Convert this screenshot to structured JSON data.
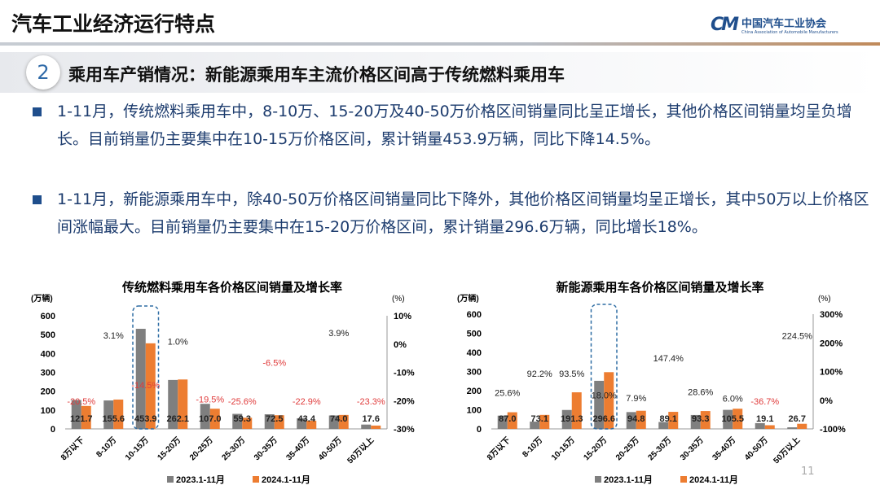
{
  "header": {
    "title": "汽车工业经济运行特点",
    "logo_cn": "中国汽车工业协会",
    "logo_en": "China Association of Automobile Manufacturers"
  },
  "section": {
    "number": "2",
    "title": "乘用车产销情况：新能源乘用车主流价格区间高于传统燃料乘用车"
  },
  "bullets": [
    "1-11月，传统燃料乘用车中，8-10万、15-20万及40-50万价格区间销量同比呈正增长，其他价格区间销量均呈负增长。目前销量仍主要集中在10-15万价格区间，累计销量453.9万辆，同比下降14.5%。",
    "1-11月，新能源乘用车中，除40-50万价格区间销量同比下降外，其他价格区间销量均呈正增长，其中50万以上价格区间涨幅最大。目前销量仍主要集中在15-20万价格区间，累计销量296.6万辆，同比增长18%。"
  ],
  "page_number": "11",
  "colors": {
    "s2023": "#7f7f7f",
    "s2024": "#ed7d31",
    "negative": "#e03c3c",
    "highlight": "#2e6da4"
  },
  "chart_data": [
    {
      "type": "bar+labels",
      "title": "传统燃料乘用车各价格区间销量及增长率",
      "ylabel": "(万辆)",
      "y2label": "(%)",
      "categories": [
        "8万以下",
        "8-10万",
        "10-15万",
        "15-20万",
        "20-25万",
        "25-30万",
        "30-35万",
        "35-40万",
        "40-50万",
        "50万以上"
      ],
      "ylim": [
        0,
        600
      ],
      "yticks": [
        "0",
        "100",
        "200",
        "300",
        "400",
        "500",
        "600"
      ],
      "y2lim": [
        -30,
        10
      ],
      "y2ticks": [
        "-30%",
        "-20%",
        "-10%",
        "0%",
        "10%"
      ],
      "series": [
        {
          "name": "2023.1-11月",
          "values": [
            153.1,
            150.9,
            530.9,
            259.5,
            132.9,
            79.7,
            77.5,
            56.3,
            71.2,
            22.9
          ]
        },
        {
          "name": "2024.1-11月",
          "values": [
            121.7,
            155.6,
            453.9,
            262.1,
            107.0,
            59.3,
            72.5,
            43.4,
            74.0,
            17.6
          ],
          "labels": [
            "121.7",
            "155.6",
            "453.9",
            "262.1",
            "107.0",
            "59.3",
            "72.5",
            "43.4",
            "74.0",
            "17.6"
          ]
        }
      ],
      "growth": [
        -20.5,
        3.1,
        -14.5,
        1.0,
        -19.5,
        -25.6,
        -6.5,
        -22.9,
        3.9,
        -23.3
      ],
      "growth_labels": [
        "-20.5%",
        "3.1%",
        "-14.5%",
        "1.0%",
        "-19.5%",
        "-25.6%",
        "-6.5%",
        "-22.9%",
        "3.9%",
        "-23.3%"
      ],
      "highlight": "10-15万",
      "legend": "bottom"
    },
    {
      "type": "bar+labels",
      "title": "新能源乘用车各价格区间销量及增长率",
      "ylabel": "(万辆)",
      "y2label": "(%)",
      "categories": [
        "8万以下",
        "8-10万",
        "10-15万",
        "15-20万",
        "20-25万",
        "25-30万",
        "30-35万",
        "35-40万",
        "40-50万",
        "50万以上"
      ],
      "ylim": [
        0,
        600
      ],
      "yticks": [
        "0",
        "100",
        "200",
        "300",
        "400",
        "500",
        "600"
      ],
      "y2lim": [
        -100,
        300
      ],
      "y2ticks": [
        "-100%",
        "0%",
        "100%",
        "200%",
        "300%"
      ],
      "series": [
        {
          "name": "2023.1-11月",
          "values": [
            69.3,
            38.0,
            98.9,
            251.4,
            87.9,
            36.0,
            72.6,
            99.5,
            30.2,
            8.2
          ]
        },
        {
          "name": "2024.1-11月",
          "values": [
            87.0,
            73.1,
            191.3,
            296.6,
            94.8,
            89.1,
            93.3,
            105.5,
            19.1,
            26.7
          ],
          "labels": [
            "87.0",
            "73.1",
            "191.3",
            "296.6",
            "94.8",
            "89.1",
            "93.3",
            "105.5",
            "19.1",
            "26.7"
          ]
        }
      ],
      "growth": [
        25.6,
        92.2,
        93.5,
        18.0,
        7.9,
        147.4,
        28.6,
        6.0,
        -36.7,
        224.5
      ],
      "growth_labels": [
        "25.6%",
        "92.2%",
        "93.5%",
        "18.0%",
        "7.9%",
        "147.4%",
        "28.6%",
        "6.0%",
        "-36.7%",
        "224.5%"
      ],
      "highlight": "15-20万",
      "legend": "bottom"
    }
  ]
}
